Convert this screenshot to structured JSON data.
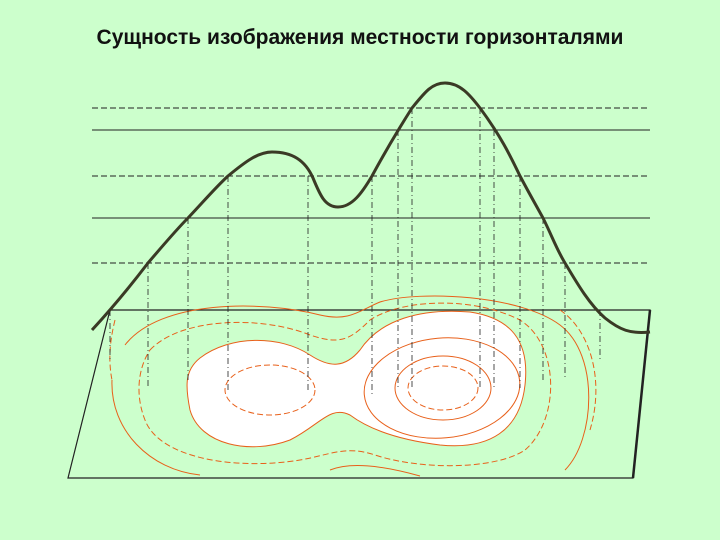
{
  "title": "Сущность изображения местности горизонталями"
}
